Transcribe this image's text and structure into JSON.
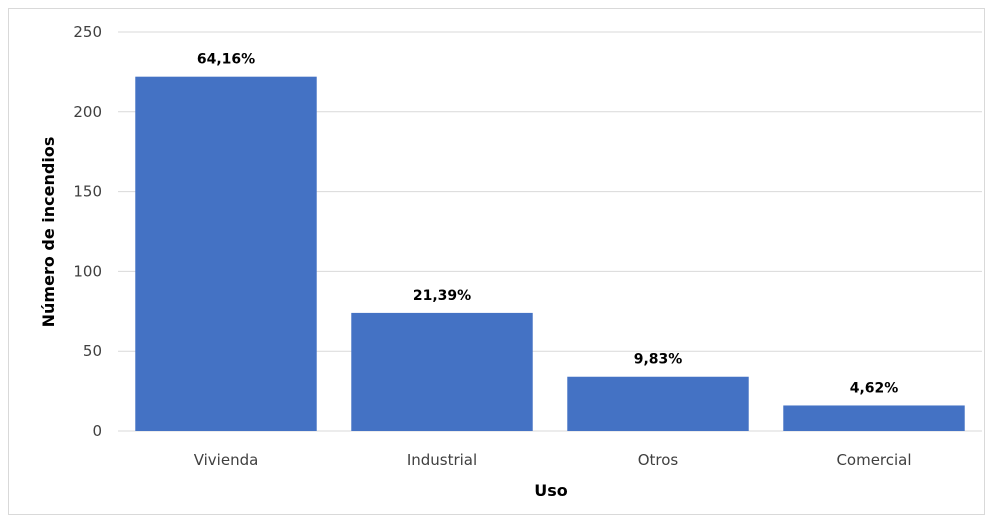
{
  "chart_data": {
    "type": "bar",
    "categories": [
      "Vivienda",
      "Industrial",
      "Otros",
      "Comercial"
    ],
    "values": [
      222,
      74,
      34,
      16
    ],
    "data_labels": [
      "64,16%",
      "21,39%",
      "9,83%",
      "4,62%"
    ],
    "title": "",
    "xlabel": "Uso",
    "ylabel": "Número de incendios",
    "ylim": [
      0,
      250
    ],
    "yticks": [
      0,
      50,
      100,
      150,
      200,
      250
    ],
    "grid": true,
    "legend": "none",
    "bar_color": "#4472c4"
  }
}
